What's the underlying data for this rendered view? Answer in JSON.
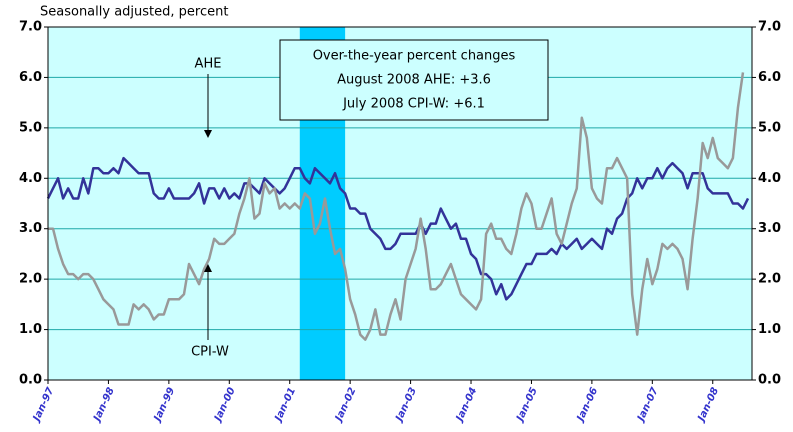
{
  "chart_data": {
    "type": "line",
    "subtitle": "Seasonally adjusted, percent",
    "categories": [
      "Jan-97",
      null,
      null,
      null,
      null,
      null,
      null,
      null,
      null,
      null,
      null,
      null,
      "Jan-98",
      null,
      null,
      null,
      null,
      null,
      null,
      null,
      null,
      null,
      null,
      null,
      "Jan-99",
      null,
      null,
      null,
      null,
      null,
      null,
      null,
      null,
      null,
      null,
      null,
      "Jan-00",
      null,
      null,
      null,
      null,
      null,
      null,
      null,
      null,
      null,
      null,
      null,
      "Jan-01",
      null,
      null,
      null,
      null,
      null,
      null,
      null,
      null,
      null,
      null,
      null,
      "Jan-02",
      null,
      null,
      null,
      null,
      null,
      null,
      null,
      null,
      null,
      null,
      null,
      "Jan-03",
      null,
      null,
      null,
      null,
      null,
      null,
      null,
      null,
      null,
      null,
      null,
      "Jan-04",
      null,
      null,
      null,
      null,
      null,
      null,
      null,
      null,
      null,
      null,
      null,
      "Jan-05",
      null,
      null,
      null,
      null,
      null,
      null,
      null,
      null,
      null,
      null,
      null,
      "Jan-06",
      null,
      null,
      null,
      null,
      null,
      null,
      null,
      null,
      null,
      null,
      null,
      "Jan-07",
      null,
      null,
      null,
      null,
      null,
      null,
      null,
      null,
      null,
      null,
      null,
      "Jan-08",
      null,
      null,
      null,
      null,
      null,
      null,
      null
    ],
    "series": [
      {
        "name": "AHE",
        "color": "#333399",
        "values": [
          3.6,
          3.8,
          4.0,
          3.6,
          3.8,
          3.6,
          3.6,
          4.0,
          3.7,
          4.2,
          4.2,
          4.1,
          4.1,
          4.2,
          4.1,
          4.4,
          4.3,
          4.2,
          4.1,
          4.1,
          4.1,
          3.7,
          3.6,
          3.6,
          3.8,
          3.6,
          3.6,
          3.6,
          3.6,
          3.7,
          3.9,
          3.5,
          3.8,
          3.8,
          3.6,
          3.8,
          3.6,
          3.7,
          3.6,
          3.9,
          3.9,
          3.8,
          3.7,
          4.0,
          3.9,
          3.8,
          3.7,
          3.8,
          4.0,
          4.2,
          4.2,
          4.0,
          3.9,
          4.2,
          4.1,
          4.0,
          3.9,
          4.1,
          3.8,
          3.7,
          3.4,
          3.4,
          3.3,
          3.3,
          3.0,
          2.9,
          2.8,
          2.6,
          2.6,
          2.7,
          2.9,
          2.9,
          2.9,
          2.9,
          3.1,
          2.9,
          3.1,
          3.1,
          3.4,
          3.2,
          3.0,
          3.1,
          2.8,
          2.8,
          2.5,
          2.4,
          2.1,
          2.1,
          2.0,
          1.7,
          1.9,
          1.6,
          1.7,
          1.9,
          2.1,
          2.3,
          2.3,
          2.5,
          2.5,
          2.5,
          2.6,
          2.5,
          2.7,
          2.6,
          2.7,
          2.8,
          2.6,
          2.7,
          2.8,
          2.7,
          2.6,
          3.0,
          2.9,
          3.2,
          3.3,
          3.6,
          3.7,
          4.0,
          3.8,
          4.0,
          4.0,
          4.2,
          4.0,
          4.2,
          4.3,
          4.2,
          4.1,
          3.8,
          4.1,
          4.1,
          4.1,
          3.8,
          3.7,
          3.7,
          3.7,
          3.7,
          3.5,
          3.5,
          3.4,
          3.6
        ]
      },
      {
        "name": "CPI-W",
        "color": "#999999",
        "values": [
          3.0,
          3.0,
          2.6,
          2.3,
          2.1,
          2.1,
          2.0,
          2.1,
          2.1,
          2.0,
          1.8,
          1.6,
          1.5,
          1.4,
          1.1,
          1.1,
          1.1,
          1.5,
          1.4,
          1.5,
          1.4,
          1.2,
          1.3,
          1.3,
          1.6,
          1.6,
          1.6,
          1.7,
          2.3,
          2.1,
          1.9,
          2.2,
          2.4,
          2.8,
          2.7,
          2.7,
          2.8,
          2.9,
          3.3,
          3.6,
          4.0,
          3.2,
          3.3,
          3.9,
          3.7,
          3.8,
          3.4,
          3.5,
          3.4,
          3.5,
          3.4,
          3.7,
          3.6,
          2.9,
          3.1,
          3.6,
          3.0,
          2.5,
          2.6,
          2.2,
          1.6,
          1.3,
          0.9,
          0.8,
          1.0,
          1.4,
          0.9,
          0.9,
          1.3,
          1.6,
          1.2,
          2.0,
          2.3,
          2.6,
          3.2,
          2.6,
          1.8,
          1.8,
          1.9,
          2.1,
          2.3,
          2.0,
          1.7,
          1.6,
          1.5,
          1.4,
          1.6,
          2.9,
          3.1,
          2.8,
          2.8,
          2.6,
          2.5,
          2.9,
          3.4,
          3.7,
          3.5,
          3.0,
          3.0,
          3.3,
          3.6,
          2.9,
          2.7,
          3.1,
          3.5,
          3.8,
          5.2,
          4.8,
          3.8,
          3.6,
          3.5,
          4.2,
          4.2,
          4.4,
          4.2,
          4.0,
          1.7,
          0.9,
          1.8,
          2.4,
          1.9,
          2.2,
          2.7,
          2.6,
          2.7,
          2.6,
          2.4,
          1.8,
          2.8,
          3.6,
          4.7,
          4.4,
          4.8,
          4.4,
          4.3,
          4.2,
          4.4,
          5.4,
          6.1,
          null
        ]
      }
    ],
    "ylim": [
      0,
      7
    ],
    "yticks": [
      {
        "value": 0,
        "label": "0.0"
      },
      {
        "value": 1,
        "label": "1.0"
      },
      {
        "value": 2,
        "label": "2.0"
      },
      {
        "value": 3,
        "label": "3.0"
      },
      {
        "value": 4,
        "label": "4.0"
      },
      {
        "value": 5,
        "label": "5.0"
      },
      {
        "value": 6,
        "label": "6.0"
      },
      {
        "value": 7,
        "label": "7.0"
      }
    ],
    "y2lim": [
      0,
      7
    ],
    "y2ticks": [
      {
        "value": 0,
        "label": "0.0"
      },
      {
        "value": 1,
        "label": "1.0"
      },
      {
        "value": 2,
        "label": "2.0"
      },
      {
        "value": 3,
        "label": "3.0"
      },
      {
        "value": 4,
        "label": "4.0"
      },
      {
        "value": 5,
        "label": "5.0"
      },
      {
        "value": 6,
        "label": "6.0"
      },
      {
        "value": 7,
        "label": "7.0"
      }
    ],
    "grid": true,
    "shaded_range": [
      50,
      59
    ],
    "annotation_box": [
      "Over-the-year percent changes",
      "August 2008 AHE:  +3.6",
      "July 2008 CPI-W:  +6.1"
    ]
  }
}
